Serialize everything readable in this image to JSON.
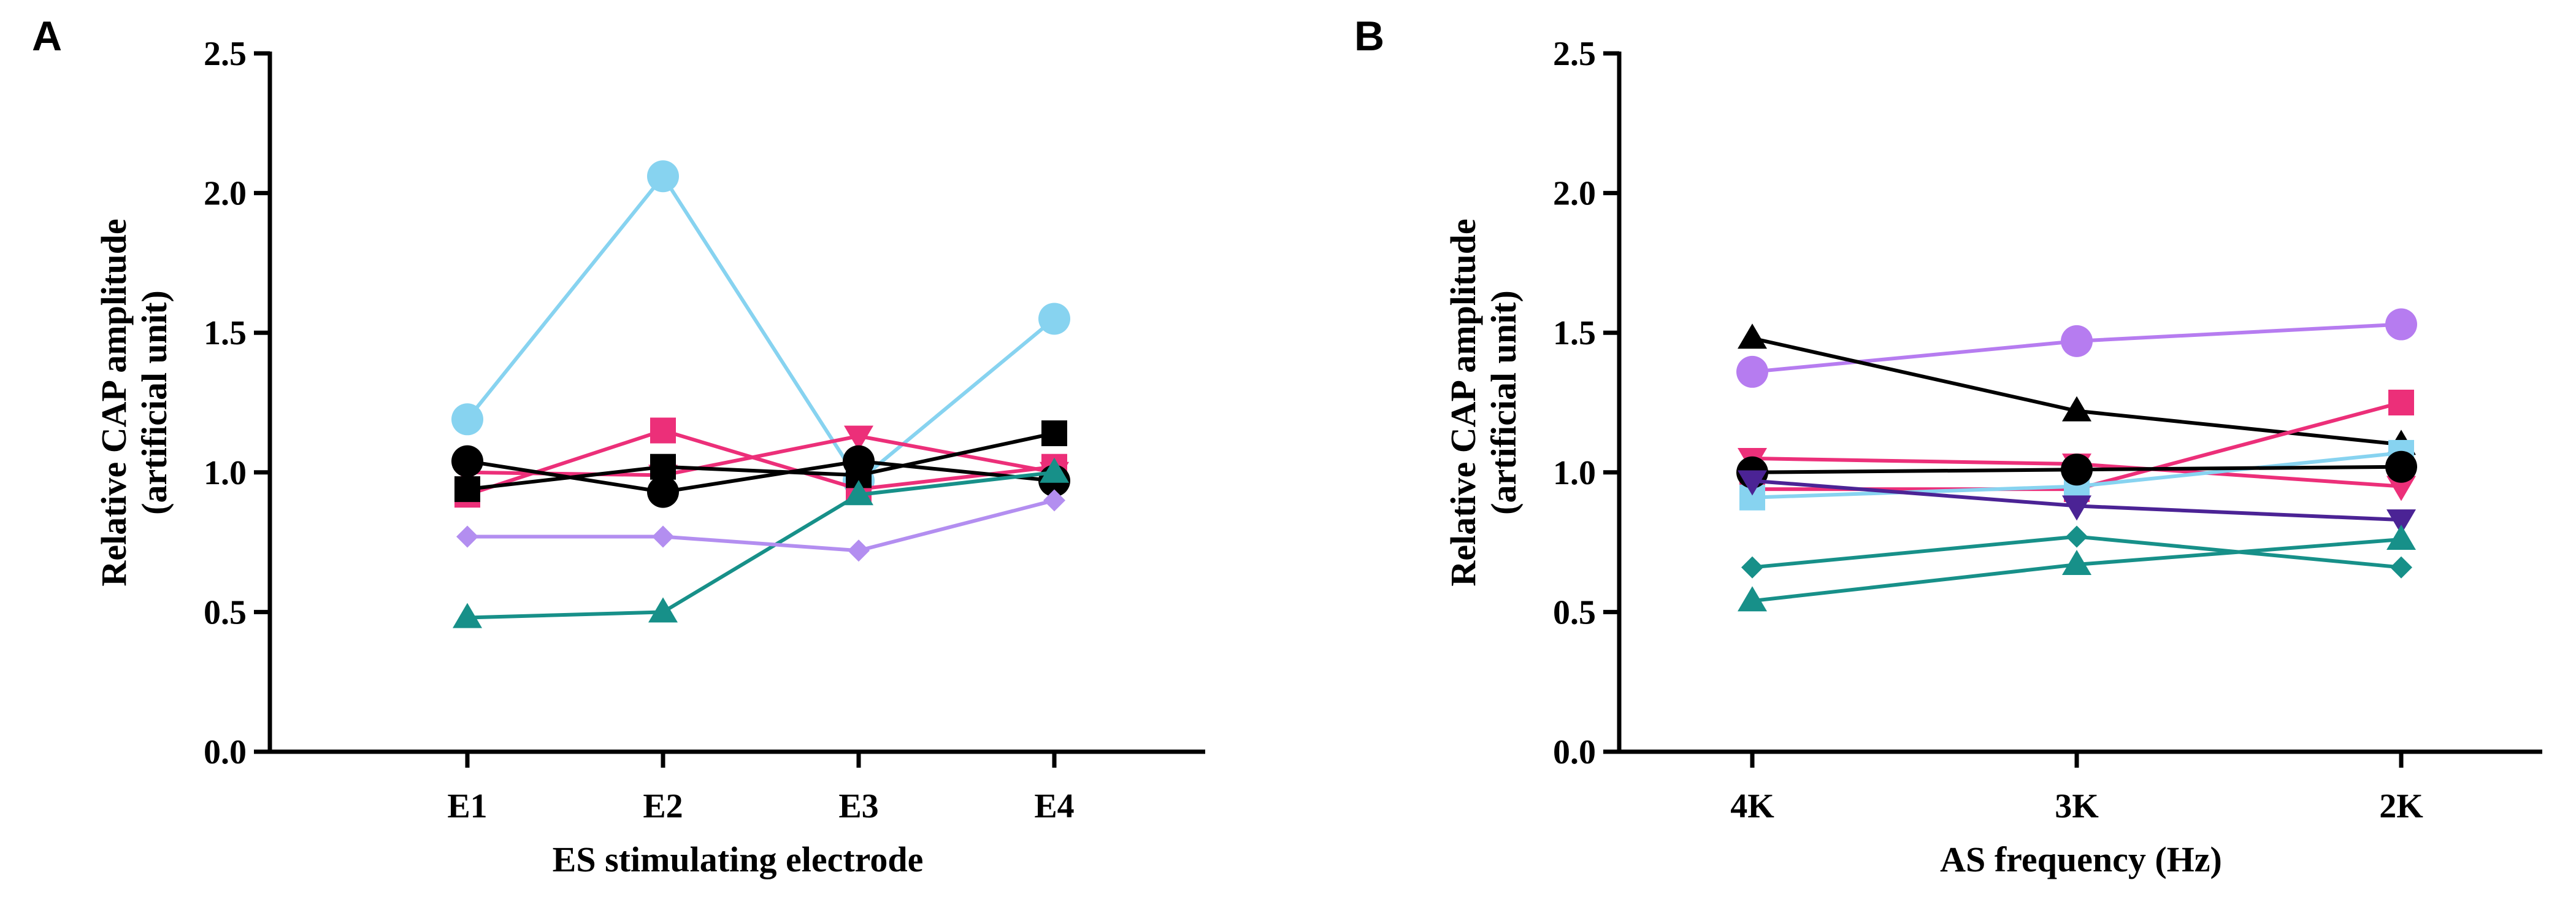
{
  "chart_data": [
    {
      "panel": "A",
      "type": "line",
      "categories": [
        "E1",
        "E2",
        "E3",
        "E4"
      ],
      "ylabel_line1": "Relative CAP  amplitude",
      "ylabel_line2": "(artificial unit)",
      "xlabel": "ES stimulating electrode",
      "ylim": [
        0,
        2.5
      ],
      "yticks": [
        "0.0",
        "0.5",
        "1.0",
        "1.5",
        "2.0",
        "2.5"
      ],
      "series": [
        {
          "name": "lightblue-circle",
          "color": "#87d3f0",
          "marker": "circle",
          "values": [
            1.19,
            2.06,
            0.97,
            1.55
          ]
        },
        {
          "name": "pink-square",
          "color": "#ec2f79",
          "marker": "square",
          "values": [
            0.92,
            1.15,
            0.94,
            1.02
          ]
        },
        {
          "name": "pink-triangle-down",
          "color": "#ec2f79",
          "marker": "triangle-down",
          "values": [
            1.0,
            0.99,
            1.13,
            1.0
          ]
        },
        {
          "name": "black-circle",
          "color": "#000000",
          "marker": "circle",
          "values": [
            1.04,
            0.93,
            1.04,
            0.97
          ]
        },
        {
          "name": "black-square",
          "color": "#000000",
          "marker": "square",
          "values": [
            0.94,
            1.02,
            0.99,
            1.14
          ]
        },
        {
          "name": "teal-triangle",
          "color": "#179089",
          "marker": "triangle",
          "values": [
            0.48,
            0.5,
            0.92,
            1.0
          ]
        },
        {
          "name": "purple-diamond",
          "color": "#b38ef0",
          "marker": "diamond",
          "values": [
            0.77,
            0.77,
            0.72,
            0.9
          ]
        }
      ]
    },
    {
      "panel": "B",
      "type": "line",
      "categories": [
        "4K",
        "3K",
        "2K"
      ],
      "ylabel_line1": "Relative CAP amplitude",
      "ylabel_line2": "(artificial unit)",
      "xlabel": "AS frequency (Hz)",
      "ylim": [
        0,
        2.5
      ],
      "yticks": [
        "0.0",
        "0.5",
        "1.0",
        "1.5",
        "2.0",
        "2.5"
      ],
      "series": [
        {
          "name": "purple-circle",
          "color": "#b67cf0",
          "marker": "circle",
          "values": [
            1.36,
            1.47,
            1.53
          ]
        },
        {
          "name": "black-triangle",
          "color": "#000000",
          "marker": "triangle",
          "values": [
            1.48,
            1.22,
            1.1
          ]
        },
        {
          "name": "pink-square",
          "color": "#ec2f79",
          "marker": "square",
          "values": [
            0.94,
            0.94,
            1.25
          ]
        },
        {
          "name": "pink-triangle-down",
          "color": "#ec2f79",
          "marker": "triangle-down",
          "values": [
            1.05,
            1.03,
            0.95
          ]
        },
        {
          "name": "lightblue-square",
          "color": "#87d3f0",
          "marker": "square",
          "values": [
            0.91,
            0.95,
            1.07
          ]
        },
        {
          "name": "black-circle",
          "color": "#000000",
          "marker": "circle",
          "values": [
            1.0,
            1.01,
            1.02
          ]
        },
        {
          "name": "indigo-triangle-down",
          "color": "#4b2395",
          "marker": "triangle-down",
          "values": [
            0.97,
            0.88,
            0.83
          ]
        },
        {
          "name": "teal-diamond",
          "color": "#179089",
          "marker": "diamond",
          "values": [
            0.66,
            0.77,
            0.66
          ]
        },
        {
          "name": "teal-triangle",
          "color": "#179089",
          "marker": "triangle",
          "values": [
            0.54,
            0.67,
            0.76
          ]
        }
      ]
    }
  ]
}
